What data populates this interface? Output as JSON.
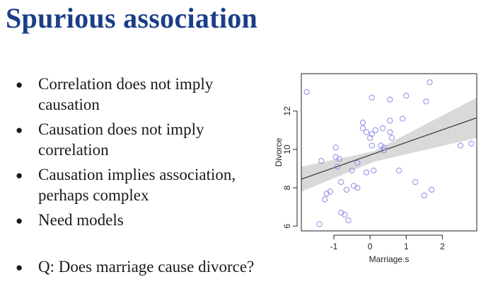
{
  "slide": {
    "title": "Spurious association",
    "bullets": [
      {
        "text": "Correlation does not imply causation"
      },
      {
        "text": "Causation does not imply correlation"
      },
      {
        "text": "Causation implies association, perhaps complex"
      },
      {
        "text": "Need models"
      },
      {
        "text": "Q: Does marriage cause divorce?"
      }
    ]
  },
  "chart_data": {
    "type": "scatter",
    "xlabel": "Marriage.s",
    "ylabel": "Divorce",
    "xlim": [
      -1.9,
      2.95
    ],
    "ylim": [
      5.75,
      13.95
    ],
    "xticks": [
      -1,
      0,
      1,
      2
    ],
    "yticks": [
      6,
      8,
      10,
      12
    ],
    "grid": false,
    "point_color": "#8c8ce6",
    "band_color": "#d9d9d9",
    "line_color": "#333333",
    "points": [
      {
        "x": -1.75,
        "y": 13.0
      },
      {
        "x": 0.05,
        "y": 12.7
      },
      {
        "x": 0.55,
        "y": 12.6
      },
      {
        "x": 1.0,
        "y": 12.8
      },
      {
        "x": 1.65,
        "y": 13.5
      },
      {
        "x": 1.55,
        "y": 12.5
      },
      {
        "x": -0.2,
        "y": 11.4
      },
      {
        "x": 0.35,
        "y": 11.1
      },
      {
        "x": -0.2,
        "y": 11.1
      },
      {
        "x": -0.1,
        "y": 10.9
      },
      {
        "x": 0.05,
        "y": 10.8
      },
      {
        "x": 0.15,
        "y": 11.0
      },
      {
        "x": 0.55,
        "y": 11.5
      },
      {
        "x": 0.55,
        "y": 10.9
      },
      {
        "x": 0.9,
        "y": 11.6
      },
      {
        "x": 0.0,
        "y": 10.6
      },
      {
        "x": 0.6,
        "y": 10.6
      },
      {
        "x": -0.95,
        "y": 10.1
      },
      {
        "x": -0.95,
        "y": 9.6
      },
      {
        "x": -0.85,
        "y": 9.5
      },
      {
        "x": -1.35,
        "y": 9.4
      },
      {
        "x": -0.35,
        "y": 9.3
      },
      {
        "x": 0.05,
        "y": 10.2
      },
      {
        "x": 0.3,
        "y": 10.2
      },
      {
        "x": 0.38,
        "y": 10.1
      },
      {
        "x": 0.38,
        "y": 9.95
      },
      {
        "x": -0.5,
        "y": 8.9
      },
      {
        "x": -0.1,
        "y": 8.8
      },
      {
        "x": 0.1,
        "y": 8.9
      },
      {
        "x": 0.8,
        "y": 8.9
      },
      {
        "x": -0.9,
        "y": 9.1
      },
      {
        "x": -0.8,
        "y": 8.3
      },
      {
        "x": -0.45,
        "y": 8.1
      },
      {
        "x": -0.65,
        "y": 7.9
      },
      {
        "x": -0.35,
        "y": 8.0
      },
      {
        "x": 1.25,
        "y": 8.3
      },
      {
        "x": 1.5,
        "y": 7.6
      },
      {
        "x": 1.7,
        "y": 7.9
      },
      {
        "x": -1.2,
        "y": 7.7
      },
      {
        "x": -1.1,
        "y": 7.8
      },
      {
        "x": -1.25,
        "y": 7.4
      },
      {
        "x": -0.8,
        "y": 6.7
      },
      {
        "x": -0.7,
        "y": 6.6
      },
      {
        "x": -0.6,
        "y": 6.3
      },
      {
        "x": -1.4,
        "y": 6.1
      },
      {
        "x": 2.5,
        "y": 10.2
      },
      {
        "x": 2.8,
        "y": 10.3
      }
    ],
    "fit_line": [
      {
        "x": -1.9,
        "y": 8.45
      },
      {
        "x": 2.95,
        "y": 11.65
      }
    ],
    "confidence_band": {
      "upper": [
        {
          "x": -1.9,
          "y": 9.1
        },
        {
          "x": 0.1,
          "y": 9.9
        },
        {
          "x": 2.95,
          "y": 12.7
        }
      ],
      "lower": [
        {
          "x": -1.9,
          "y": 7.8
        },
        {
          "x": 0.1,
          "y": 9.35
        },
        {
          "x": 2.95,
          "y": 10.6
        }
      ]
    }
  }
}
